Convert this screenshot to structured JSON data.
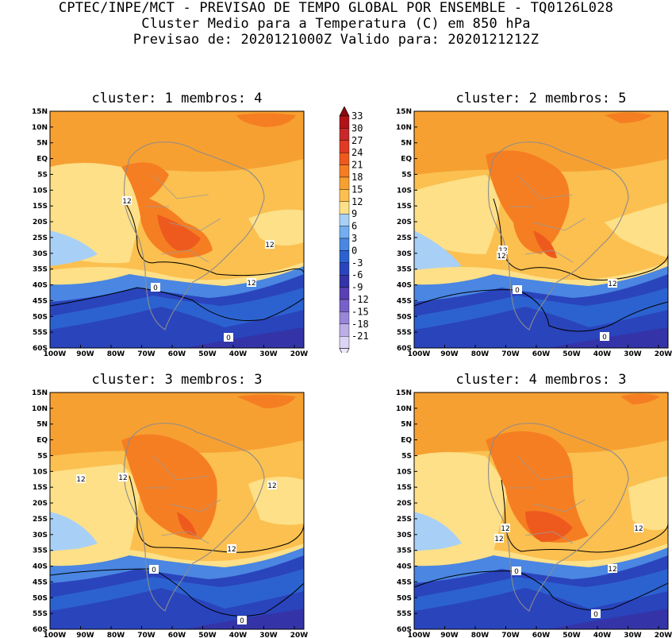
{
  "title": {
    "line1": "CPTEC/INPE/MCT - PREVISAO DE TEMPO GLOBAL POR ENSEMBLE - TQ0126L028",
    "line2": "Cluster Medio para a Temperatura (C) em 850 hPa",
    "line3": "Previsao de: 2020121000Z   Valido para: 2020121212Z"
  },
  "colorbar": {
    "levels": [
      "33",
      "30",
      "27",
      "24",
      "21",
      "18",
      "15",
      "12",
      "9",
      "6",
      "3",
      "0",
      "-3",
      "-6",
      "-9",
      "-12",
      "-15",
      "-18",
      "-21"
    ],
    "colors": [
      "#b01418",
      "#c8282a",
      "#e03a24",
      "#ee5a1e",
      "#f57e22",
      "#f7a032",
      "#fbc050",
      "#fde088",
      "#a8d0f6",
      "#74aef0",
      "#4a86e2",
      "#2c62d0",
      "#2a44bc",
      "#3434a8",
      "#5a40b4",
      "#7860c8",
      "#9a86d8",
      "#bcaee6",
      "#dcd4f4"
    ],
    "top_color": "#8c0a0e",
    "bottom_color": "#ece8fa"
  },
  "axes": {
    "x_ticks": [
      "100W",
      "90W",
      "80W",
      "70W",
      "60W",
      "50W",
      "40W",
      "30W",
      "20W"
    ],
    "y_ticks": [
      "15N",
      "10N",
      "5N",
      "EQ",
      "5S",
      "10S",
      "15S",
      "20S",
      "25S",
      "30S",
      "35S",
      "40S",
      "45S",
      "50S",
      "55S",
      "60S"
    ]
  },
  "chart_data": [
    {
      "type": "heatmap",
      "title": "cluster: 1  membros: 4",
      "variable": "Temperatura 850 hPa (C)",
      "x_range": [
        "100W",
        "15W"
      ],
      "y_range": [
        "60S",
        "15N"
      ],
      "contour_labels": [
        "12",
        "12",
        "12",
        "0",
        "0"
      ],
      "max_region_value_approx": 24
    },
    {
      "type": "heatmap",
      "title": "cluster: 2  membros: 5",
      "variable": "Temperatura 850 hPa (C)",
      "x_range": [
        "100W",
        "15W"
      ],
      "y_range": [
        "60S",
        "15N"
      ],
      "contour_labels": [
        "12",
        "12",
        "12",
        "0",
        "0"
      ],
      "max_region_value_approx": 24
    },
    {
      "type": "heatmap",
      "title": "cluster: 3  membros: 3",
      "variable": "Temperatura 850 hPa (C)",
      "x_range": [
        "100W",
        "15W"
      ],
      "y_range": [
        "60S",
        "15N"
      ],
      "contour_labels": [
        "12",
        "12",
        "12",
        "12",
        "0",
        "0"
      ],
      "max_region_value_approx": 24
    },
    {
      "type": "heatmap",
      "title": "cluster: 4  membros: 3",
      "variable": "Temperatura 850 hPa (C)",
      "x_range": [
        "100W",
        "15W"
      ],
      "y_range": [
        "60S",
        "15N"
      ],
      "contour_labels": [
        "12",
        "12",
        "12",
        "0",
        "0"
      ],
      "max_region_value_approx": 27
    }
  ]
}
